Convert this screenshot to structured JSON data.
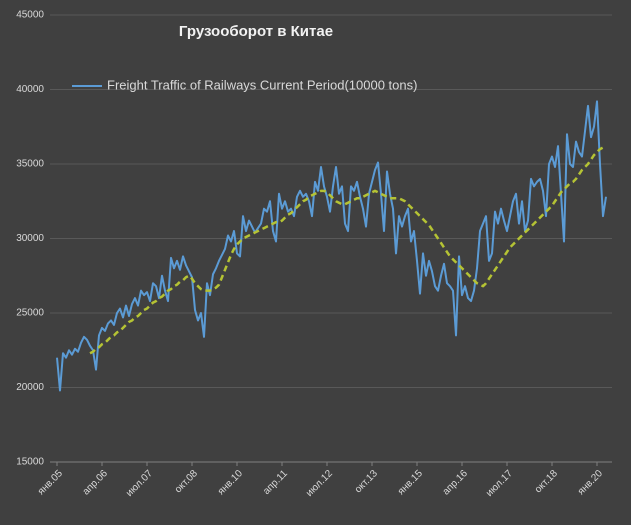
{
  "chart_data": {
    "type": "line",
    "title": "Грузооборот в Китае",
    "categories": [
      "янв.05",
      null,
      null,
      null,
      null,
      null,
      null,
      null,
      null,
      null,
      null,
      null,
      null,
      null,
      null,
      "апр.06",
      null,
      null,
      null,
      null,
      null,
      null,
      null,
      null,
      null,
      null,
      null,
      null,
      null,
      null,
      "июл.07",
      null,
      null,
      null,
      null,
      null,
      null,
      null,
      null,
      null,
      null,
      null,
      null,
      null,
      null,
      "окт.08",
      null,
      null,
      null,
      null,
      null,
      null,
      null,
      null,
      null,
      null,
      null,
      null,
      null,
      null,
      "янв.10",
      null,
      null,
      null,
      null,
      null,
      null,
      null,
      null,
      null,
      null,
      null,
      null,
      null,
      null,
      "апр.11",
      null,
      null,
      null,
      null,
      null,
      null,
      null,
      null,
      null,
      null,
      null,
      null,
      null,
      null,
      "июл.12",
      null,
      null,
      null,
      null,
      null,
      null,
      null,
      null,
      null,
      null,
      null,
      null,
      null,
      null,
      "окт.13",
      null,
      null,
      null,
      null,
      null,
      null,
      null,
      null,
      null,
      null,
      null,
      null,
      null,
      null,
      "янв.15",
      null,
      null,
      null,
      null,
      null,
      null,
      null,
      null,
      null,
      null,
      null,
      null,
      null,
      null,
      "апр.16",
      null,
      null,
      null,
      null,
      null,
      null,
      null,
      null,
      null,
      null,
      null,
      null,
      null,
      null,
      "июл.17",
      null,
      null,
      null,
      null,
      null,
      null,
      null,
      null,
      null,
      null,
      null,
      null,
      null,
      null,
      "окт.18",
      null,
      null,
      null,
      null,
      null,
      null,
      null,
      null,
      null,
      null,
      null,
      null,
      null,
      null,
      "янв.20",
      null,
      null,
      null
    ],
    "series": [
      {
        "name": "Freight Traffic of Railways Current Period(10000 tons)",
        "color": "#5b9bd5",
        "line_style": "solid",
        "values": [
          22000,
          19800,
          22300,
          22000,
          22500,
          22200,
          22600,
          22400,
          23000,
          23400,
          23200,
          22800,
          22500,
          21200,
          23500,
          24000,
          23800,
          24300,
          24500,
          24200,
          25000,
          25300,
          24700,
          25500,
          24800,
          25600,
          26000,
          25500,
          26500,
          26200,
          26400,
          25800,
          27000,
          26800,
          26000,
          27500,
          26500,
          25800,
          28700,
          28000,
          28500,
          27900,
          28800,
          28200,
          27800,
          27400,
          25200,
          24500,
          25000,
          23400,
          27000,
          26200,
          27600,
          28000,
          28500,
          28900,
          29300,
          30200,
          29800,
          30500,
          29000,
          28800,
          31500,
          30500,
          31200,
          30800,
          30400,
          30700,
          31000,
          32000,
          31800,
          32500,
          30500,
          29800,
          33000,
          32000,
          32500,
          31800,
          32000,
          31500,
          32800,
          33200,
          32800,
          33000,
          32500,
          31500,
          33800,
          33200,
          34800,
          33500,
          32800,
          31800,
          33500,
          34800,
          33000,
          33500,
          31000,
          30500,
          33500,
          33200,
          33800,
          32800,
          32000,
          30800,
          33000,
          33800,
          34600,
          35100,
          33000,
          30500,
          34500,
          33000,
          32000,
          29000,
          31500,
          30800,
          31500,
          32000,
          29800,
          30500,
          28500,
          26300,
          29000,
          27500,
          28500,
          27800,
          26800,
          26500,
          27500,
          28300,
          27000,
          26800,
          26500,
          23500,
          28800,
          26200,
          26800,
          26000,
          25800,
          26500,
          28000,
          30500,
          31000,
          31500,
          28500,
          29000,
          31800,
          31000,
          32000,
          31200,
          30500,
          31500,
          32500,
          33000,
          31000,
          32500,
          30500,
          31200,
          34000,
          33500,
          33800,
          34000,
          33200,
          31500,
          35000,
          35500,
          34800,
          36200,
          33000,
          29800,
          37000,
          35000,
          34800,
          36500,
          35800,
          35500,
          37200,
          38900,
          36800,
          37500,
          39200,
          35000,
          31500,
          32800
        ]
      },
      {
        "color": "#b5c334",
        "line_style": "dashed",
        "values": [
          null,
          null,
          null,
          null,
          null,
          null,
          null,
          null,
          null,
          null,
          null,
          22300,
          22400,
          22600,
          22700,
          22900,
          23000,
          23200,
          23400,
          23500,
          23700,
          23800,
          24000,
          24200,
          24400,
          24500,
          24700,
          24800,
          25000,
          25200,
          25300,
          25500,
          25700,
          25800,
          26000,
          26100,
          26300,
          26500,
          26600,
          26800,
          26900,
          27100,
          27200,
          27400,
          27500,
          27300,
          27000,
          26800,
          26600,
          26500,
          26500,
          26500,
          26600,
          26700,
          26900,
          27400,
          27900,
          28400,
          28900,
          29300,
          29600,
          29800,
          30000,
          30100,
          30200,
          30300,
          30400,
          30500,
          30600,
          30700,
          30800,
          30900,
          31000,
          31100,
          31100,
          31200,
          31400,
          31600,
          31700,
          31900,
          32100,
          32300,
          32500,
          32600,
          32800,
          32900,
          33000,
          33100,
          33200,
          33200,
          33100,
          32900,
          32700,
          32500,
          32400,
          32300,
          32300,
          32400,
          32500,
          32600,
          32700,
          32700,
          32800,
          32900,
          33000,
          33100,
          33200,
          33100,
          33000,
          32900,
          32800,
          32700,
          32700,
          32700,
          32700,
          32600,
          32500,
          32300,
          32100,
          31900,
          31700,
          31500,
          31300,
          31100,
          30900,
          30600,
          30300,
          30000,
          29700,
          29400,
          29100,
          28800,
          28600,
          28400,
          28200,
          28000,
          27800,
          27600,
          27400,
          27200,
          27000,
          26900,
          26800,
          27000,
          27300,
          27600,
          27900,
          28200,
          28500,
          28800,
          29100,
          29400,
          29600,
          29800,
          30000,
          30200,
          30400,
          30600,
          30800,
          31000,
          31200,
          31400,
          31600,
          31800,
          32000,
          32200,
          32500,
          32800,
          33100,
          33300,
          33500,
          33700,
          33800,
          34000,
          34300,
          34600,
          34800,
          35000,
          35300,
          35600,
          35800,
          36000,
          36100,
          36200
        ]
      }
    ],
    "ylim": [
      15000,
      45000
    ],
    "yticks": [
      15000,
      20000,
      25000,
      30000,
      35000,
      40000,
      45000
    ],
    "grid": true
  }
}
